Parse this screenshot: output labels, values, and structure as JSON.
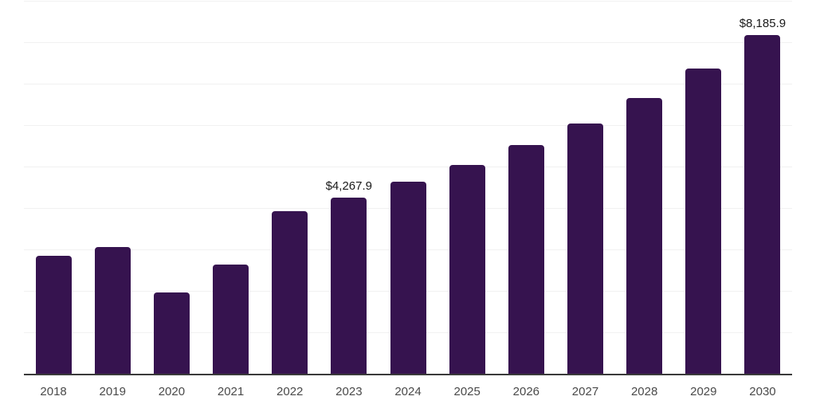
{
  "chart_data": {
    "type": "bar",
    "title": "",
    "xlabel": "",
    "ylabel": "",
    "categories": [
      "2018",
      "2019",
      "2020",
      "2021",
      "2022",
      "2023",
      "2024",
      "2025",
      "2026",
      "2027",
      "2028",
      "2029",
      "2030"
    ],
    "values": [
      2870,
      3080,
      1990,
      2650,
      3940,
      4267.9,
      4660,
      5060,
      5530,
      6050,
      6680,
      7390,
      8185.9
    ],
    "data_labels": {
      "2023": "$4,267.9",
      "2030": "$8,185.9"
    },
    "ylim": [
      0,
      9000
    ],
    "gridline_interval": 1000,
    "grid": "horizontal",
    "legend": "none",
    "y_axis_tick_labels_visible": false,
    "colors": {
      "bar": "#36134F",
      "gridline": "#F1F1F1",
      "axis_line": "#3A3A3A",
      "tick_label": "#4A4A4A",
      "data_label": "#1A1A1A",
      "background": "#FFFFFF"
    }
  }
}
